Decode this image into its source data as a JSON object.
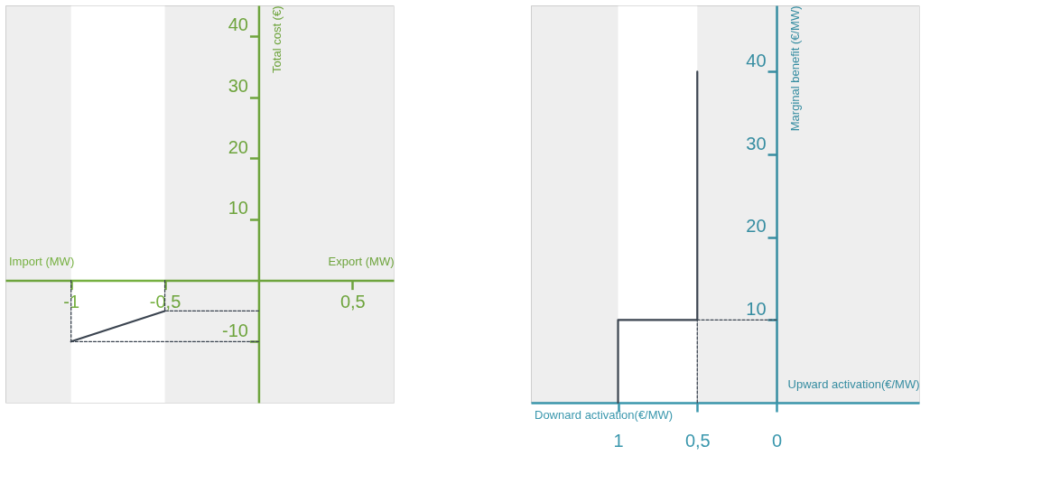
{
  "chart_data": [
    {
      "type": "line",
      "xlabel": "Export (MW)",
      "ylabel": "Total cost (€)",
      "annotations": [
        "Import (MW)"
      ],
      "xlim": [
        -1.35,
        0.72
      ],
      "ylim": [
        -20,
        45
      ],
      "xticks": [
        {
          "value": -1,
          "label": "-1"
        },
        {
          "value": -0.5,
          "label": "-0,5"
        },
        {
          "value": 0.5,
          "label": "0,5"
        }
      ],
      "yticks": [
        -10,
        10,
        20,
        30,
        40
      ],
      "series": [
        {
          "color": "#3b4450",
          "x": [
            -1,
            -0.5
          ],
          "values": [
            -10,
            -5
          ]
        },
        {
          "color": "#3b4450",
          "line_style": "dashed",
          "x": [
            -0.5,
            -0.5
          ],
          "values": [
            0,
            -5
          ]
        },
        {
          "color": "#3b4450",
          "line_style": "dashed",
          "x": [
            0,
            -0.5
          ],
          "values": [
            -5,
            -5
          ]
        },
        {
          "color": "#3b4450",
          "line_style": "dashed",
          "x": [
            -1,
            -1
          ],
          "values": [
            0,
            -10
          ]
        },
        {
          "color": "#3b4450",
          "line_style": "dashed",
          "x": [
            0,
            -1
          ],
          "values": [
            -10,
            -10
          ]
        }
      ],
      "bands": [
        {
          "axis": "x",
          "from": -1.35,
          "to": -1,
          "color": "#eeeeee"
        },
        {
          "axis": "x",
          "from": -0.5,
          "to": 0.72,
          "color": "#eeeeee"
        }
      ],
      "grid": false,
      "marker": "none",
      "line_style": "solid"
    },
    {
      "type": "line",
      "xlabel": "Upward activation(€/MW)",
      "ylabel": "Marginal benefit (€/MW)",
      "annotations": [
        "Downard activation(€/MW)"
      ],
      "xlim": [
        1.55,
        -0.9
      ],
      "ylim": [
        0,
        48
      ],
      "xticks": [
        1,
        {
          "value": 0.5,
          "label": "0,5"
        },
        0
      ],
      "yticks": [
        10,
        20,
        30,
        40
      ],
      "series": [
        {
          "color": "#3b4450",
          "x": [
            1,
            1,
            0.5,
            0.5
          ],
          "values": [
            0,
            10,
            10,
            40
          ]
        },
        {
          "color": "#3b4450",
          "line_style": "dashed",
          "x": [
            0.5,
            0.5
          ],
          "values": [
            0,
            10
          ]
        },
        {
          "color": "#3b4450",
          "line_style": "dashed",
          "x": [
            0,
            0.5
          ],
          "values": [
            10,
            10
          ]
        }
      ],
      "bands": [
        {
          "axis": "x",
          "from": 1.55,
          "to": 1,
          "color": "#eeeeee"
        },
        {
          "axis": "x",
          "from": 0.5,
          "to": -0.9,
          "color": "#eeeeee"
        }
      ],
      "grid": false,
      "marker": "none",
      "line_style": "solid"
    }
  ]
}
